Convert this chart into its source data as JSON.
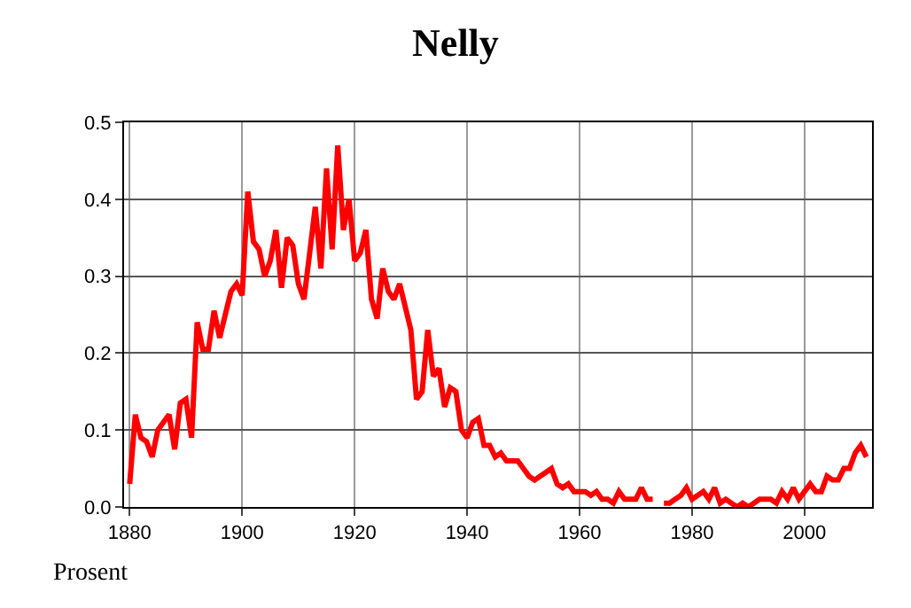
{
  "chart_data": {
    "type": "line",
    "title": "Nelly",
    "ylabel": "Prosent",
    "x": [
      1880,
      1881,
      1882,
      1883,
      1884,
      1885,
      1886,
      1887,
      1888,
      1889,
      1890,
      1891,
      1892,
      1893,
      1894,
      1895,
      1896,
      1897,
      1898,
      1899,
      1900,
      1901,
      1902,
      1903,
      1904,
      1905,
      1906,
      1907,
      1908,
      1909,
      1910,
      1911,
      1912,
      1913,
      1914,
      1915,
      1916,
      1917,
      1918,
      1919,
      1920,
      1921,
      1922,
      1923,
      1924,
      1925,
      1926,
      1927,
      1928,
      1929,
      1930,
      1931,
      1932,
      1933,
      1934,
      1935,
      1936,
      1937,
      1938,
      1939,
      1940,
      1941,
      1942,
      1943,
      1944,
      1945,
      1946,
      1947,
      1948,
      1949,
      1950,
      1951,
      1952,
      1953,
      1954,
      1955,
      1956,
      1957,
      1958,
      1959,
      1960,
      1961,
      1962,
      1963,
      1964,
      1965,
      1966,
      1967,
      1968,
      1969,
      1970,
      1971,
      1972,
      1973,
      1974,
      1975,
      1976,
      1977,
      1978,
      1979,
      1980,
      1981,
      1982,
      1983,
      1984,
      1985,
      1986,
      1987,
      1988,
      1989,
      1990,
      1991,
      1992,
      1993,
      1994,
      1995,
      1996,
      1997,
      1998,
      1999,
      2000,
      2001,
      2002,
      2003,
      2004,
      2005,
      2006,
      2007,
      2008,
      2009,
      2010,
      2011
    ],
    "series": [
      {
        "color": "#ff0000",
        "values": [
          0.03,
          0.12,
          0.09,
          0.085,
          0.065,
          0.1,
          0.11,
          0.12,
          0.075,
          0.135,
          0.14,
          0.09,
          0.24,
          0.205,
          0.205,
          0.255,
          0.22,
          0.25,
          0.28,
          0.29,
          0.275,
          0.41,
          0.345,
          0.335,
          0.3,
          0.32,
          0.36,
          0.285,
          0.35,
          0.34,
          0.29,
          0.27,
          0.33,
          0.39,
          0.31,
          0.44,
          0.335,
          0.47,
          0.36,
          0.4,
          0.32,
          0.33,
          0.36,
          0.27,
          0.245,
          0.31,
          0.28,
          0.27,
          0.29,
          0.26,
          0.23,
          0.14,
          0.15,
          0.23,
          0.17,
          0.18,
          0.13,
          0.155,
          0.15,
          0.1,
          0.09,
          0.11,
          0.115,
          0.08,
          0.08,
          0.065,
          0.07,
          0.06,
          0.06,
          0.06,
          0.05,
          0.04,
          0.035,
          0.04,
          0.045,
          0.05,
          0.03,
          0.025,
          0.03,
          0.02,
          0.02,
          0.02,
          0.015,
          0.02,
          0.01,
          0.01,
          0.005,
          0.02,
          0.01,
          0.01,
          0.01,
          0.025,
          0.01,
          0.01,
          null,
          0.005,
          0.005,
          0.01,
          0.015,
          0.025,
          0.01,
          0.015,
          0.02,
          0.01,
          0.025,
          0.005,
          0.01,
          0.005,
          0.0,
          0.005,
          0.0,
          0.005,
          0.01,
          0.01,
          0.01,
          0.005,
          0.02,
          0.01,
          0.025,
          0.01,
          0.02,
          0.03,
          0.02,
          0.02,
          0.04,
          0.035,
          0.035,
          0.05,
          0.05,
          0.07,
          0.08,
          0.065
        ]
      }
    ],
    "xlim": [
      1879,
      2012
    ],
    "xticks": [
      1880,
      1900,
      1920,
      1940,
      1960,
      1980,
      2000
    ],
    "ylim": [
      0,
      0.5
    ],
    "yticks": [
      {
        "value": 0,
        "label": "0.0"
      },
      0.1,
      0.2,
      0.3,
      0.4,
      0.5
    ],
    "grid": true,
    "legend": false,
    "marker": "none",
    "line_style": "solid"
  }
}
